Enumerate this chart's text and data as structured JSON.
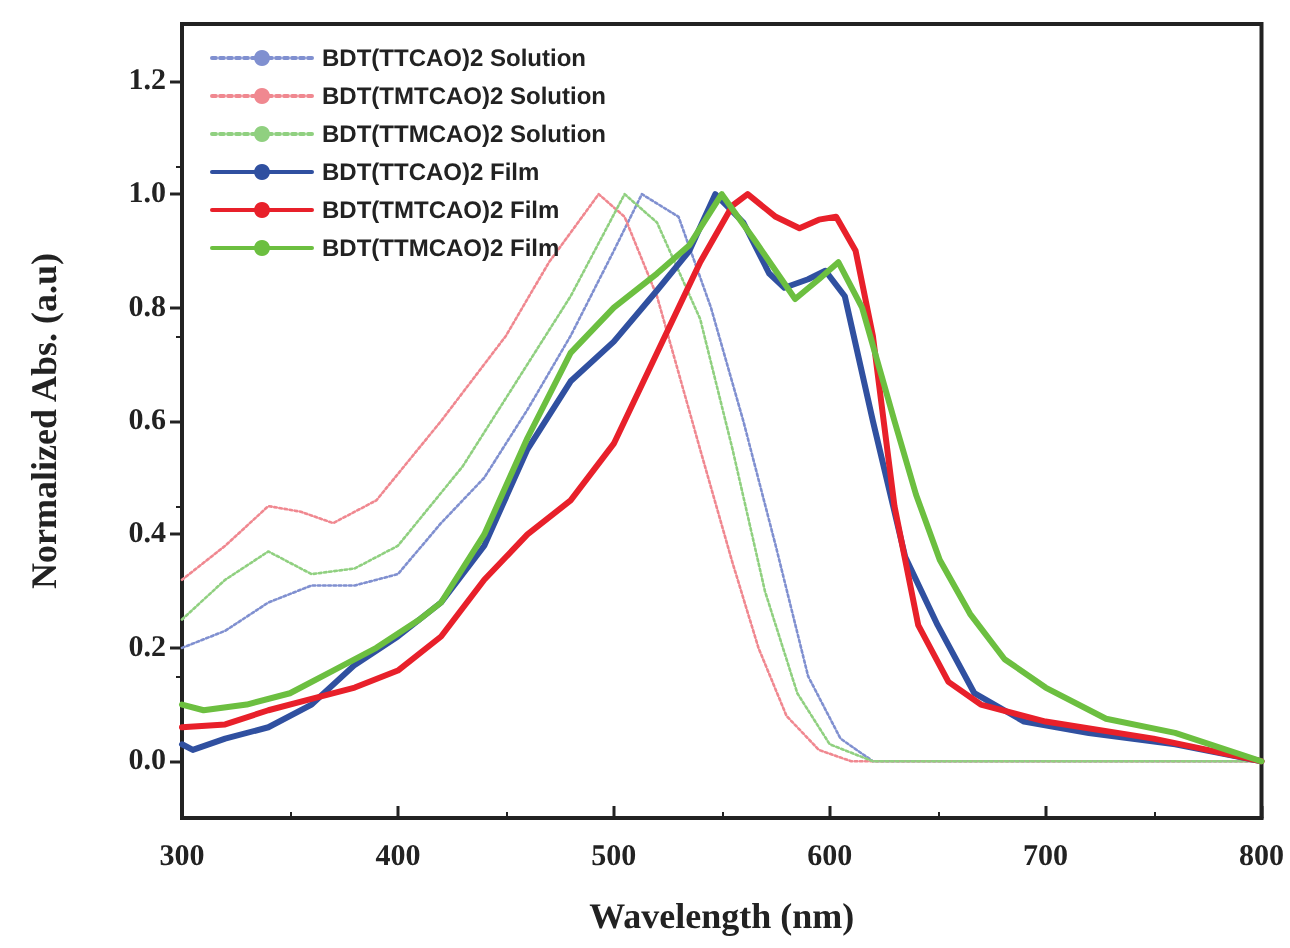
{
  "chart_data": {
    "type": "line",
    "xlabel": "Wavelength (nm)",
    "ylabel": "Normalized Abs. (a.u)",
    "xlim": [
      300,
      800
    ],
    "xticks": [
      300,
      400,
      500,
      600,
      700,
      800
    ],
    "ylim": [
      -0.1,
      1.3
    ],
    "yticks": [
      {
        "value": 0,
        "label": "0.0"
      },
      {
        "value": 0.2,
        "label": "0.2"
      },
      {
        "value": 0.4,
        "label": "0.4"
      },
      {
        "value": 0.6,
        "label": "0.6"
      },
      {
        "value": 0.8,
        "label": "0.8"
      },
      {
        "value": 1,
        "label": "1.0"
      },
      {
        "value": 1.2,
        "label": "1.2"
      }
    ],
    "grid": false,
    "legend": "top left",
    "marker": "none",
    "series": [
      {
        "name": "BDT(TTCAO)2 Solution",
        "color": "#8090d0",
        "line_style": "dotted",
        "x": [
          300,
          320,
          340,
          360,
          380,
          400,
          420,
          440,
          460,
          480,
          500,
          513,
          530,
          545,
          560,
          575,
          590,
          605,
          620,
          650,
          700,
          750,
          800
        ],
        "values": [
          0.2,
          0.23,
          0.28,
          0.31,
          0.31,
          0.33,
          0.42,
          0.5,
          0.62,
          0.75,
          0.9,
          1.0,
          0.96,
          0.8,
          0.6,
          0.38,
          0.15,
          0.04,
          0.0,
          0.0,
          0.0,
          0.0,
          0.0
        ]
      },
      {
        "name": "BDT(TMTCAO)2 Solution",
        "color": "#f08890",
        "line_style": "dotted",
        "x": [
          300,
          320,
          340,
          355,
          370,
          390,
          420,
          450,
          470,
          493,
          505,
          520,
          540,
          555,
          567,
          580,
          595,
          610,
          650,
          700,
          750,
          800
        ],
        "values": [
          0.32,
          0.38,
          0.45,
          0.44,
          0.42,
          0.46,
          0.6,
          0.75,
          0.88,
          1.0,
          0.96,
          0.82,
          0.55,
          0.35,
          0.2,
          0.08,
          0.02,
          0.0,
          0.0,
          0.0,
          0.0,
          0.0
        ]
      },
      {
        "name": "BDT(TTMCAO)2 Solution",
        "color": "#90d080",
        "line_style": "dotted",
        "x": [
          300,
          320,
          340,
          360,
          380,
          400,
          430,
          460,
          480,
          505,
          520,
          540,
          555,
          570,
          585,
          600,
          620,
          650,
          700,
          750,
          800
        ],
        "values": [
          0.25,
          0.32,
          0.37,
          0.33,
          0.34,
          0.38,
          0.52,
          0.7,
          0.82,
          1.0,
          0.95,
          0.78,
          0.55,
          0.3,
          0.12,
          0.03,
          0.0,
          0.0,
          0.0,
          0.0,
          0.0
        ]
      },
      {
        "name": "BDT(TTCAO)2 Film",
        "color": "#3050a0",
        "line_style": "solid",
        "x": [
          300,
          305,
          320,
          340,
          360,
          380,
          400,
          420,
          440,
          460,
          480,
          500,
          520,
          535,
          547,
          560,
          572,
          579,
          590,
          598,
          607,
          620,
          635,
          650,
          667,
          690,
          720,
          760,
          800
        ],
        "values": [
          0.03,
          0.02,
          0.04,
          0.06,
          0.1,
          0.17,
          0.22,
          0.28,
          0.38,
          0.55,
          0.67,
          0.74,
          0.83,
          0.9,
          1.0,
          0.95,
          0.86,
          0.835,
          0.85,
          0.865,
          0.82,
          0.6,
          0.36,
          0.24,
          0.12,
          0.07,
          0.05,
          0.03,
          0.0
        ]
      },
      {
        "name": "BDT(TMTCAO)2 Film",
        "color": "#e8202a",
        "line_style": "solid",
        "x": [
          300,
          320,
          340,
          360,
          380,
          400,
          420,
          440,
          460,
          480,
          500,
          520,
          540,
          555,
          562,
          575,
          586,
          595,
          603,
          612,
          620,
          630,
          641,
          655,
          670,
          700,
          750,
          800
        ],
        "values": [
          0.06,
          0.065,
          0.09,
          0.11,
          0.13,
          0.16,
          0.22,
          0.32,
          0.4,
          0.46,
          0.56,
          0.72,
          0.88,
          0.98,
          1.0,
          0.96,
          0.94,
          0.955,
          0.96,
          0.9,
          0.75,
          0.45,
          0.24,
          0.14,
          0.1,
          0.07,
          0.04,
          0.0
        ]
      },
      {
        "name": "BDT(TTMCAO)2 Film",
        "color": "#6cbf40",
        "line_style": "solid",
        "x": [
          300,
          310,
          330,
          350,
          370,
          390,
          410,
          420,
          440,
          460,
          480,
          500,
          520,
          535,
          550,
          565,
          584,
          595,
          604,
          615,
          630,
          640,
          651,
          665,
          681,
          700,
          728,
          760,
          800
        ],
        "values": [
          0.1,
          0.09,
          0.1,
          0.12,
          0.16,
          0.2,
          0.25,
          0.28,
          0.4,
          0.57,
          0.72,
          0.8,
          0.86,
          0.91,
          1.0,
          0.92,
          0.815,
          0.85,
          0.88,
          0.8,
          0.6,
          0.47,
          0.355,
          0.26,
          0.18,
          0.13,
          0.075,
          0.05,
          0.0
        ]
      }
    ]
  }
}
